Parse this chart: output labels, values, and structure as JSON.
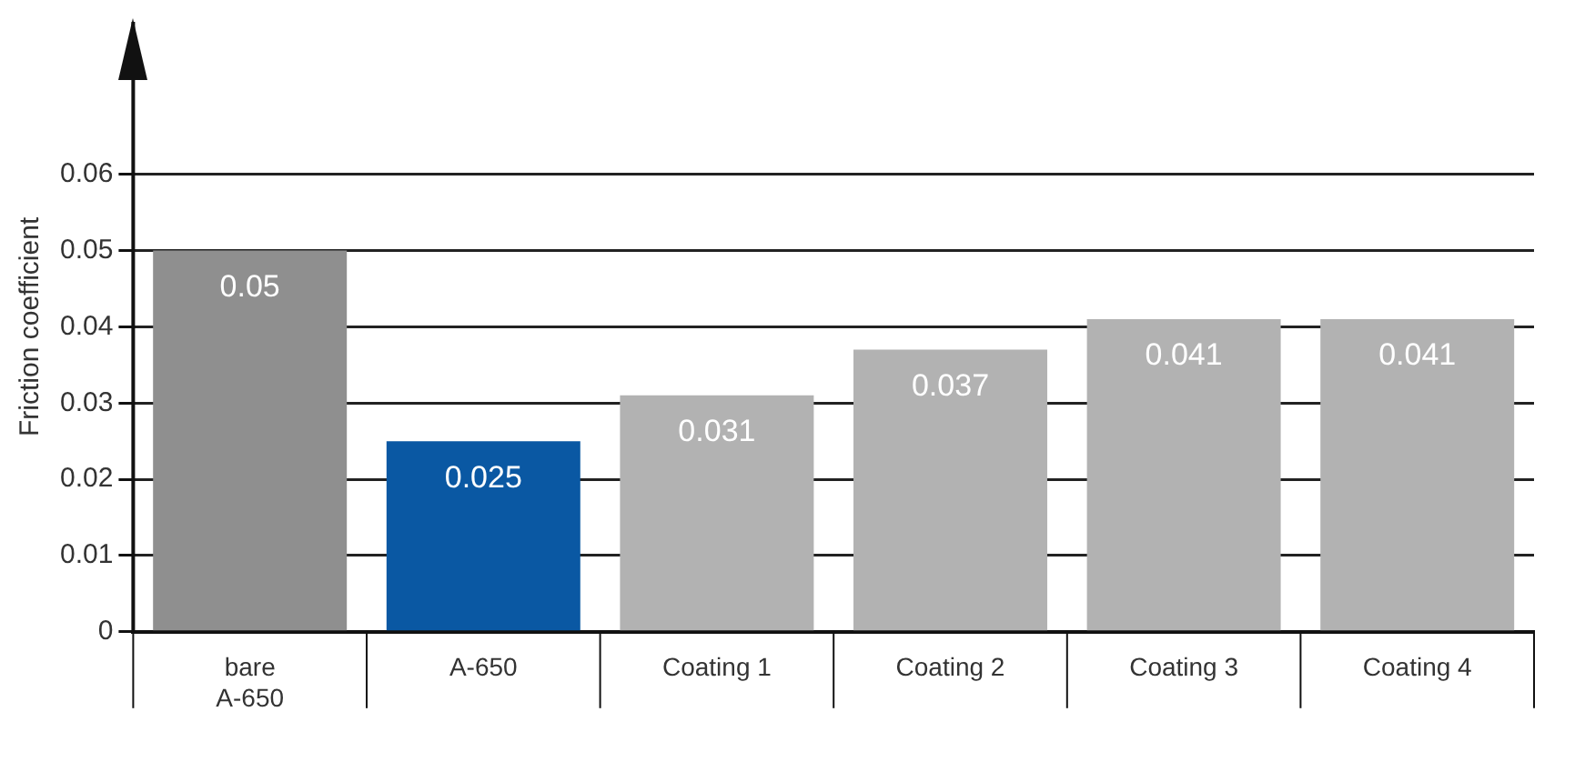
{
  "chart_data": {
    "type": "bar",
    "ylabel": "Friction coefficient",
    "categories": [
      "bare\nA-650",
      "A-650",
      "Coating 1",
      "Coating 2",
      "Coating 3",
      "Coating 4"
    ],
    "values": [
      0.05,
      0.025,
      0.031,
      0.037,
      0.041,
      0.041
    ],
    "colors": [
      "#8f8f8f",
      "#0a58a3",
      "#b2b2b2",
      "#b2b2b2",
      "#b2b2b2",
      "#b2b2b2"
    ],
    "ylim": [
      0,
      0.08
    ],
    "yticks": [
      0,
      0.01,
      0.02,
      0.03,
      0.04,
      0.05,
      0.06
    ],
    "grid": "y",
    "data_labels": true,
    "legend": false
  }
}
